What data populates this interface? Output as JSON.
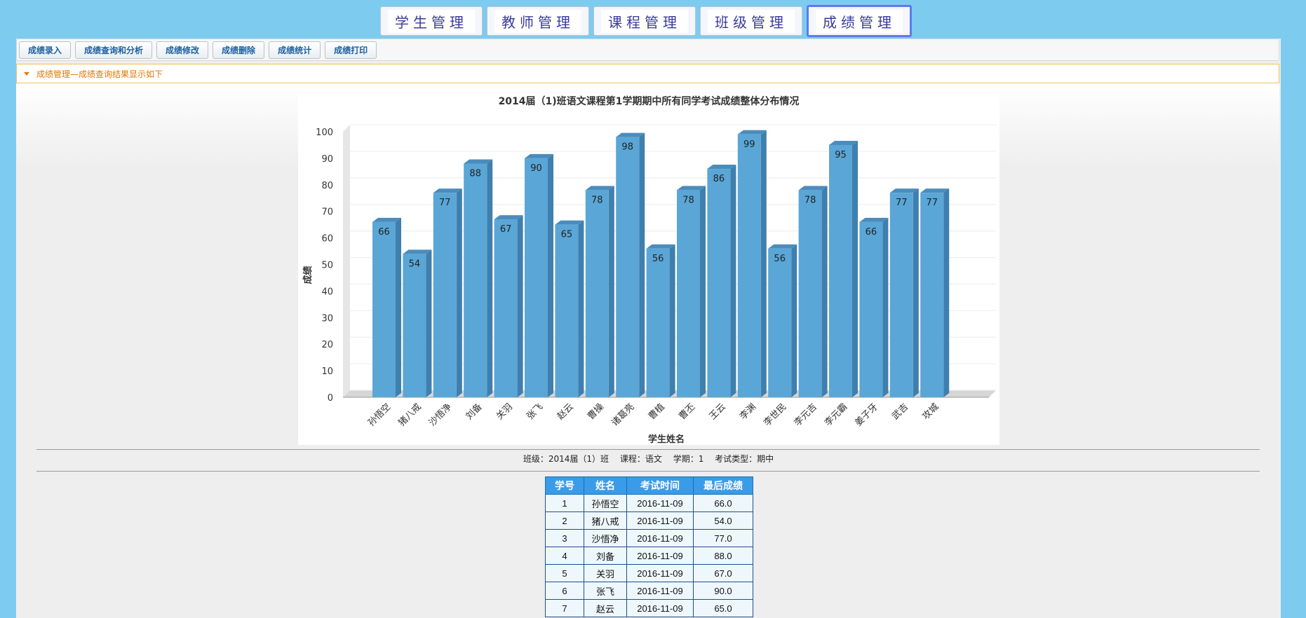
{
  "nav": {
    "tabs": [
      {
        "label": "学生管理"
      },
      {
        "label": "教师管理"
      },
      {
        "label": "课程管理"
      },
      {
        "label": "班级管理"
      },
      {
        "label": "成绩管理",
        "active": true
      }
    ]
  },
  "toolbar": {
    "buttons": [
      "成绩录入",
      "成绩查询和分析",
      "成绩修改",
      "成绩删除",
      "成绩统计",
      "成绩打印"
    ]
  },
  "breadcrumb": "成绩管理—成绩查询结果显示如下",
  "chart_data": {
    "type": "bar",
    "title": "2014届（1)班语文课程第1学期期中所有同学考试成绩整体分布情况",
    "xlabel": "学生姓名",
    "ylabel": "成绩",
    "ylim": [
      0,
      100
    ],
    "yticks": [
      0,
      10,
      20,
      30,
      40,
      50,
      60,
      70,
      80,
      90,
      100
    ],
    "grid": true,
    "color": "#5aa6d6",
    "categories": [
      "孙悟空",
      "猪八戒",
      "沙悟净",
      "刘备",
      "关羽",
      "张飞",
      "赵云",
      "曹操",
      "诸葛亮",
      "曹植",
      "曹丕",
      "王云",
      "李渊",
      "李世民",
      "李元吉",
      "李元霸",
      "姜子牙",
      "武吉",
      "攻城"
    ],
    "values": [
      66,
      54,
      77,
      88,
      67,
      90,
      65,
      78,
      98,
      56,
      78,
      86,
      99,
      56,
      78,
      95,
      66,
      77,
      77
    ]
  },
  "info": {
    "class": "班级：2014届（1）班",
    "course": "课程：语文",
    "term": "学期：1",
    "exam_type": "考试类型：期中"
  },
  "table": {
    "headers": [
      "学号",
      "姓名",
      "考试时间",
      "最后成绩"
    ],
    "rows": [
      [
        "1",
        "孙悟空",
        "2016-11-09",
        "66.0"
      ],
      [
        "2",
        "猪八戒",
        "2016-11-09",
        "54.0"
      ],
      [
        "3",
        "沙悟净",
        "2016-11-09",
        "77.0"
      ],
      [
        "4",
        "刘备",
        "2016-11-09",
        "88.0"
      ],
      [
        "5",
        "关羽",
        "2016-11-09",
        "67.0"
      ],
      [
        "6",
        "张飞",
        "2016-11-09",
        "90.0"
      ],
      [
        "7",
        "赵云",
        "2016-11-09",
        "65.0"
      ]
    ]
  }
}
